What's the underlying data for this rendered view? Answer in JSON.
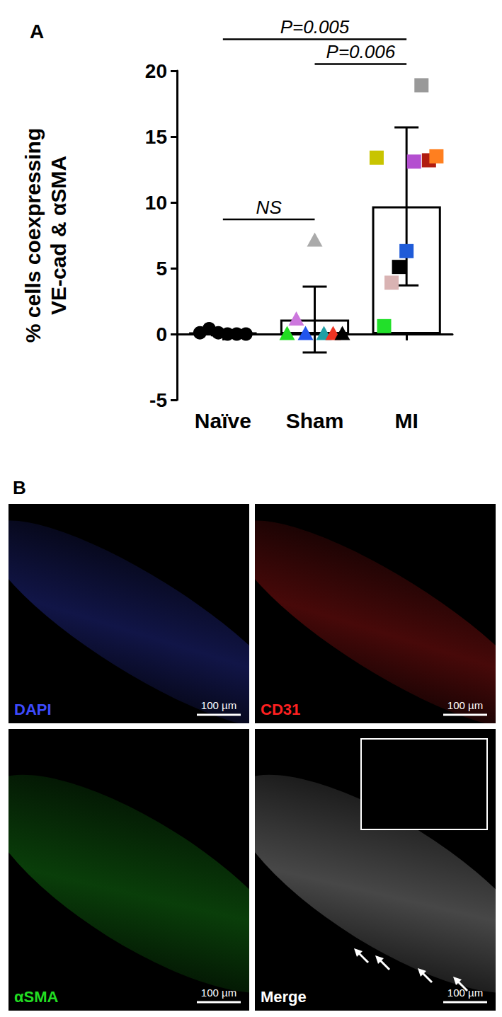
{
  "panel_label": "A",
  "chart_data": {
    "type": "bar",
    "categories": [
      "Naïve",
      "Sham",
      "MI"
    ],
    "values": [
      0.1,
      1.1,
      9.7
    ],
    "errors": [
      0.2,
      2.5,
      6.0
    ],
    "color": "#ffffff",
    "y_label": "% cells coexpressing\nVE-cad & αSMA",
    "ylim": [
      -5,
      20
    ],
    "yticks": [
      -5,
      0,
      5,
      10,
      15,
      20
    ],
    "grid": false,
    "points": [
      {
        "category": "Naïve",
        "marker": "circle",
        "values": [
          0.1,
          0.4,
          0.1,
          0,
          0,
          0
        ],
        "colors": [
          "#000000",
          "#000000",
          "#000000",
          "#000000",
          "#000000",
          "#000000"
        ]
      },
      {
        "category": "Sham",
        "marker": "triangle",
        "values": [
          0,
          1.1,
          0,
          7.1,
          0,
          0,
          0
        ],
        "colors": [
          "#22dd22",
          "#cc77dd",
          "#2255ee",
          "#aaaaaa",
          "#1f9fa5",
          "#ee3322",
          "#000000"
        ]
      },
      {
        "category": "MI",
        "marker": "square",
        "values": [
          13.4,
          0.6,
          3.9,
          5.1,
          6.3,
          13.1,
          18.9,
          13.2,
          13.5
        ],
        "colors": [
          "#c8c400",
          "#22e02a",
          "#d9b3b3",
          "#000000",
          "#1f5bd8",
          "#b44fd0",
          "#999999",
          "#b01c10",
          "#ff7f1f"
        ]
      }
    ],
    "annotations": [
      {
        "text": "P=0.005",
        "from": "Naïve",
        "to": "MI"
      },
      {
        "text": "P=0.006",
        "from": "Sham",
        "to": "MI"
      },
      {
        "text": "NS",
        "from": "Naïve",
        "to": "Sham"
      }
    ]
  },
  "panel_b": {
    "label": "B",
    "panels": [
      {
        "label": "DAPI",
        "color": "#3d4bff",
        "scale_bar": "100 µm"
      },
      {
        "label": "CD31",
        "color": "#ff2020",
        "scale_bar": "100 µm"
      },
      {
        "label": "αSMA",
        "color": "#22dd22",
        "scale_bar": "100 µm"
      },
      {
        "label": "Merge",
        "color": "#ffffff",
        "scale_bar": "100 µm"
      }
    ]
  }
}
